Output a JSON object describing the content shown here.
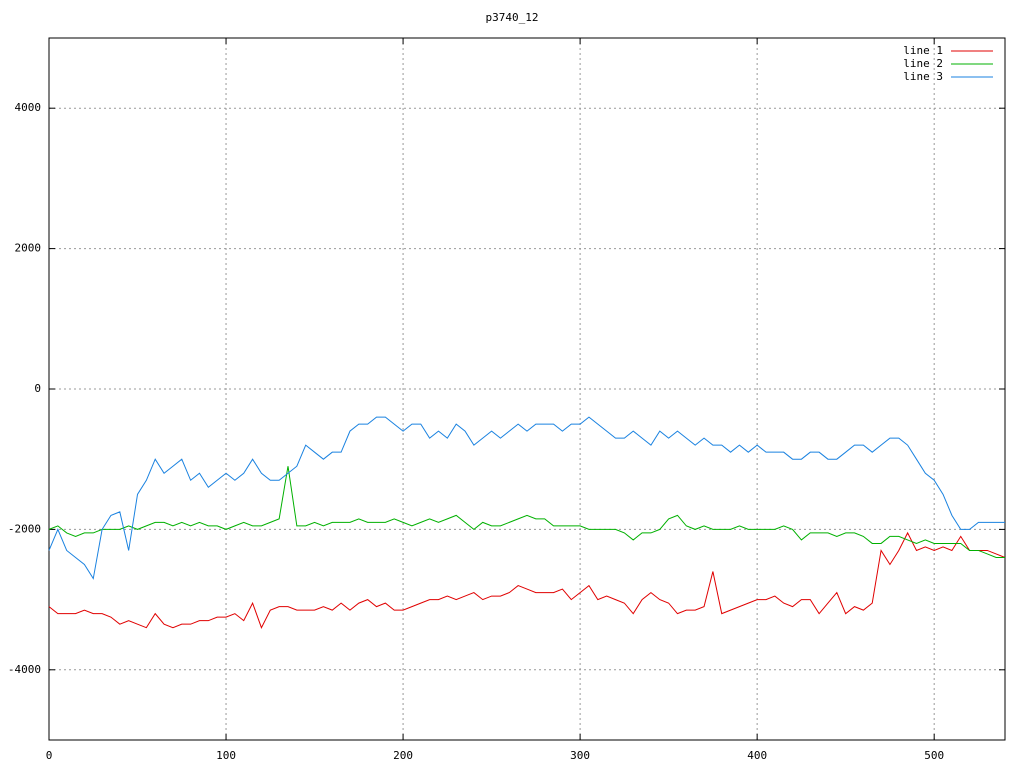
{
  "chart_data": {
    "type": "line",
    "title": "p3740_12",
    "x": [
      0,
      5,
      10,
      15,
      20,
      25,
      30,
      35,
      40,
      45,
      50,
      55,
      60,
      65,
      70,
      75,
      80,
      85,
      90,
      95,
      100,
      105,
      110,
      115,
      120,
      125,
      130,
      135,
      140,
      145,
      150,
      155,
      160,
      165,
      170,
      175,
      180,
      185,
      190,
      195,
      200,
      205,
      210,
      215,
      220,
      225,
      230,
      235,
      240,
      245,
      250,
      255,
      260,
      265,
      270,
      275,
      280,
      285,
      290,
      295,
      300,
      305,
      310,
      315,
      320,
      325,
      330,
      335,
      340,
      345,
      350,
      355,
      360,
      365,
      370,
      375,
      380,
      385,
      390,
      395,
      400,
      405,
      410,
      415,
      420,
      425,
      430,
      435,
      440,
      445,
      450,
      455,
      460,
      465,
      470,
      475,
      480,
      485,
      490,
      495,
      500,
      505,
      510,
      515,
      520,
      525,
      530,
      535,
      540
    ],
    "series": [
      {
        "name": "line 1",
        "color": "#e00000",
        "values": [
          -3100,
          -3200,
          -3200,
          -3200,
          -3150,
          -3200,
          -3200,
          -3250,
          -3350,
          -3300,
          -3350,
          -3400,
          -3200,
          -3350,
          -3400,
          -3350,
          -3350,
          -3300,
          -3300,
          -3250,
          -3250,
          -3200,
          -3300,
          -3050,
          -3400,
          -3150,
          -3100,
          -3100,
          -3150,
          -3150,
          -3150,
          -3100,
          -3150,
          -3050,
          -3150,
          -3050,
          -3000,
          -3100,
          -3050,
          -3150,
          -3150,
          -3100,
          -3050,
          -3000,
          -3000,
          -2950,
          -3000,
          -2950,
          -2900,
          -3000,
          -2950,
          -2950,
          -2900,
          -2800,
          -2850,
          -2900,
          -2900,
          -2900,
          -2850,
          -3000,
          -2900,
          -2800,
          -3000,
          -2950,
          -3000,
          -3050,
          -3200,
          -3000,
          -2900,
          -3000,
          -3050,
          -3200,
          -3150,
          -3150,
          -3100,
          -2600,
          -3200,
          -3150,
          -3100,
          -3050,
          -3000,
          -3000,
          -2950,
          -3050,
          -3100,
          -3000,
          -3000,
          -3200,
          -3050,
          -2900,
          -3200,
          -3100,
          -3150,
          -3050,
          -2300,
          -2500,
          -2300,
          -2050,
          -2300,
          -2250,
          -2300,
          -2250,
          -2300,
          -2100,
          -2300,
          -2300,
          -2300,
          -2350,
          -2400
        ]
      },
      {
        "name": "line 2",
        "color": "#00b000",
        "values": [
          -2000,
          -1950,
          -2050,
          -2100,
          -2050,
          -2050,
          -2000,
          -2000,
          -2000,
          -1950,
          -2000,
          -1950,
          -1900,
          -1900,
          -1950,
          -1900,
          -1950,
          -1900,
          -1950,
          -1950,
          -2000,
          -1950,
          -1900,
          -1950,
          -1950,
          -1900,
          -1850,
          -1100,
          -1950,
          -1950,
          -1900,
          -1950,
          -1900,
          -1900,
          -1900,
          -1850,
          -1900,
          -1900,
          -1900,
          -1850,
          -1900,
          -1950,
          -1900,
          -1850,
          -1900,
          -1850,
          -1800,
          -1900,
          -2000,
          -1900,
          -1950,
          -1950,
          -1900,
          -1850,
          -1800,
          -1850,
          -1850,
          -1950,
          -1950,
          -1950,
          -1950,
          -2000,
          -2000,
          -2000,
          -2000,
          -2050,
          -2150,
          -2050,
          -2050,
          -2000,
          -1850,
          -1800,
          -1950,
          -2000,
          -1950,
          -2000,
          -2000,
          -2000,
          -1950,
          -2000,
          -2000,
          -2000,
          -2000,
          -1950,
          -2000,
          -2150,
          -2050,
          -2050,
          -2050,
          -2100,
          -2050,
          -2050,
          -2100,
          -2200,
          -2200,
          -2100,
          -2100,
          -2150,
          -2200,
          -2150,
          -2200,
          -2200,
          -2200,
          -2200,
          -2300,
          -2300,
          -2350,
          -2400,
          -2400
        ]
      },
      {
        "name": "line 3",
        "color": "#1a82e0",
        "values": [
          -2300,
          -2000,
          -2300,
          -2400,
          -2500,
          -2700,
          -2000,
          -1800,
          -1750,
          -2300,
          -1500,
          -1300,
          -1000,
          -1200,
          -1100,
          -1000,
          -1300,
          -1200,
          -1400,
          -1300,
          -1200,
          -1300,
          -1200,
          -1000,
          -1200,
          -1300,
          -1300,
          -1200,
          -1100,
          -800,
          -900,
          -1000,
          -900,
          -900,
          -600,
          -500,
          -500,
          -400,
          -400,
          -500,
          -600,
          -500,
          -500,
          -700,
          -600,
          -700,
          -500,
          -600,
          -800,
          -700,
          -600,
          -700,
          -600,
          -500,
          -600,
          -500,
          -500,
          -500,
          -600,
          -500,
          -500,
          -400,
          -500,
          -600,
          -700,
          -700,
          -600,
          -700,
          -800,
          -600,
          -700,
          -600,
          -700,
          -800,
          -700,
          -800,
          -800,
          -900,
          -800,
          -900,
          -800,
          -900,
          -900,
          -900,
          -1000,
          -1000,
          -900,
          -900,
          -1000,
          -1000,
          -900,
          -800,
          -800,
          -900,
          -800,
          -700,
          -700,
          -800,
          -1000,
          -1200,
          -1300,
          -1500,
          -1800,
          -2000,
          -2000,
          -1900,
          -1900,
          -1900,
          -1900
        ]
      }
    ],
    "xlim": [
      0,
      540
    ],
    "ylim": [
      -5000,
      5000
    ],
    "xticks": [
      0,
      100,
      200,
      300,
      400,
      500
    ],
    "yticks": [
      -4000,
      -2000,
      0,
      2000,
      4000
    ],
    "grid": true,
    "legend": "top-right"
  }
}
